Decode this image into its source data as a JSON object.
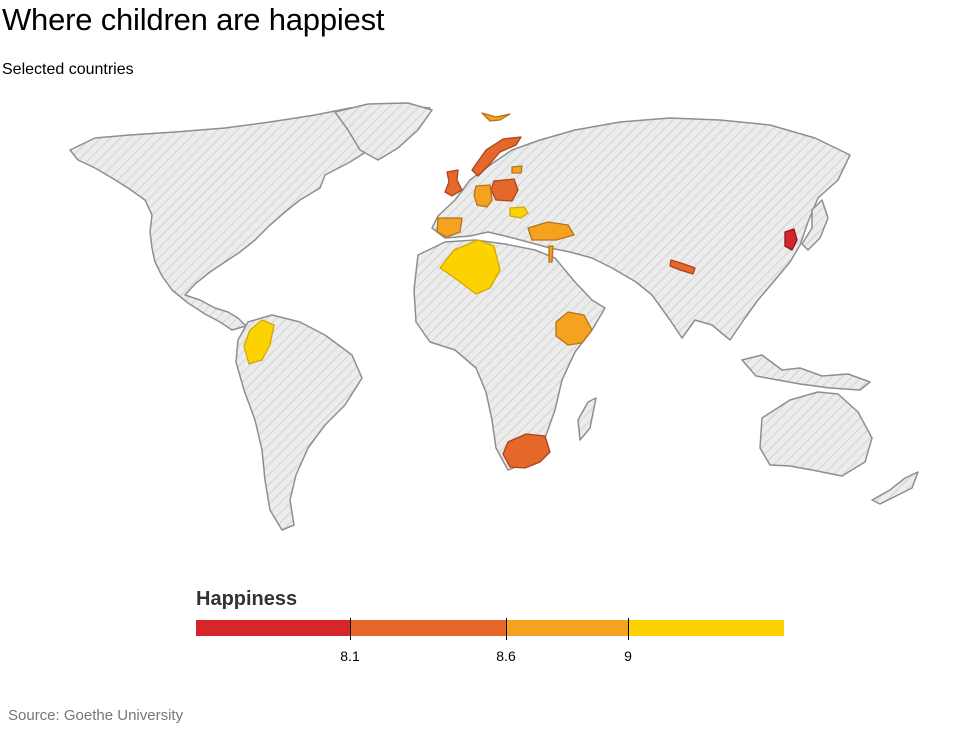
{
  "title": "Where children are happiest",
  "subtitle": "Selected countries",
  "legend": {
    "title": "Happiness",
    "scale_colors": [
      "#d6262b",
      "#e5672a",
      "#f4a21f",
      "#fcd200"
    ],
    "thresholds": [
      "8.1",
      "8.6",
      "9"
    ]
  },
  "source": "Source: Goethe University",
  "map": {
    "no_data_fill": "#ececec",
    "countries": [
      {
        "name": "South Korea",
        "band": 0
      },
      {
        "name": "United Kingdom",
        "band": 1
      },
      {
        "name": "Poland",
        "band": 1
      },
      {
        "name": "Norway",
        "band": 1
      },
      {
        "name": "Nepal",
        "band": 1
      },
      {
        "name": "South Africa",
        "band": 1
      },
      {
        "name": "Germany",
        "band": 2
      },
      {
        "name": "Spain",
        "band": 2
      },
      {
        "name": "Turkey",
        "band": 2
      },
      {
        "name": "Ethiopia",
        "band": 2
      },
      {
        "name": "Estonia",
        "band": 2
      },
      {
        "name": "Malta",
        "band": 2
      },
      {
        "name": "Israel",
        "band": 2
      },
      {
        "name": "Algeria",
        "band": 3
      },
      {
        "name": "Colombia",
        "band": 3
      },
      {
        "name": "Romania",
        "band": 3
      }
    ]
  }
}
